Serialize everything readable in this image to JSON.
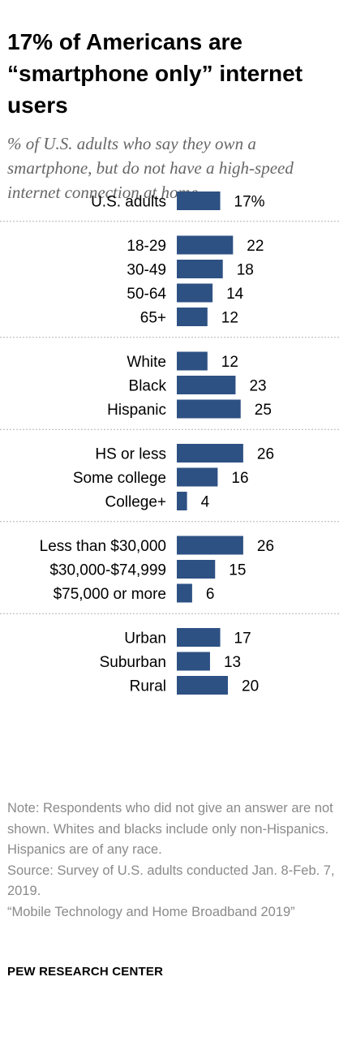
{
  "title": "17% of Americans are “smartphone only” internet users",
  "subtitle": "% of U.S. adults who say they own a smartphone, but do not have a high-speed internet connection at home",
  "chart_data": {
    "type": "bar",
    "orientation": "horizontal",
    "bar_color": "#2e5184",
    "first_value_suffix": "%",
    "groups": [
      {
        "rows": [
          {
            "label": "U.S. adults",
            "value": 17
          }
        ]
      },
      {
        "rows": [
          {
            "label": "18-29",
            "value": 22
          },
          {
            "label": "30-49",
            "value": 18
          },
          {
            "label": "50-64",
            "value": 14
          },
          {
            "label": "65+",
            "value": 12
          }
        ]
      },
      {
        "rows": [
          {
            "label": "White",
            "value": 12
          },
          {
            "label": "Black",
            "value": 23
          },
          {
            "label": "Hispanic",
            "value": 25
          }
        ]
      },
      {
        "rows": [
          {
            "label": "HS or less",
            "value": 26
          },
          {
            "label": "Some college",
            "value": 16
          },
          {
            "label": "College+",
            "value": 4
          }
        ]
      },
      {
        "rows": [
          {
            "label": "Less than $30,000",
            "value": 26
          },
          {
            "label": "$30,000-$74,999",
            "value": 15
          },
          {
            "label": "$75,000 or more",
            "value": 6
          }
        ]
      },
      {
        "rows": [
          {
            "label": "Urban",
            "value": 17
          },
          {
            "label": "Suburban",
            "value": 13
          },
          {
            "label": "Rural",
            "value": 20
          }
        ]
      }
    ]
  },
  "notes": {
    "note": "Note: Respondents who did not give an answer are not shown. Whites and blacks include only non-Hispanics. Hispanics are of any race.",
    "source": "Source: Survey of U.S. adults conducted Jan. 8-Feb. 7, 2019.",
    "report": "“Mobile Technology and Home Broadband 2019”"
  },
  "brand": "PEW RESEARCH CENTER"
}
